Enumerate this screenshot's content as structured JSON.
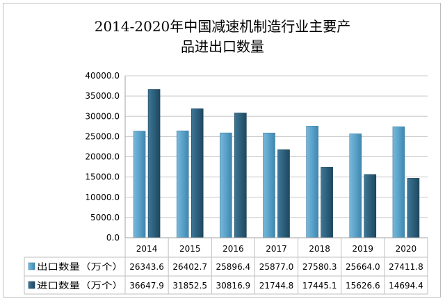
{
  "chart_data": {
    "type": "bar",
    "title": "2014-2020年中国减速机制造行业主要产品进出口数量",
    "title_lines": [
      "2014-2020年中国减速机制造行业主要产",
      "品进出口数量"
    ],
    "categories": [
      "2014",
      "2015",
      "2016",
      "2017",
      "2018",
      "2019",
      "2020"
    ],
    "series": [
      {
        "name": "出口数量（万个）",
        "values": [
          26343.6,
          26402.7,
          25896.4,
          25877.0,
          27580.3,
          25664.0,
          27411.8
        ],
        "value_labels": [
          "26343.6",
          "26402.7",
          "25896.4",
          "25877.0",
          "27580.3",
          "25664.0",
          "27411.8"
        ],
        "color": "#5da5cc"
      },
      {
        "name": "进口数量（万个）",
        "values": [
          36647.9,
          31852.5,
          30816.9,
          21744.8,
          17445.1,
          15626.6,
          14694.4
        ],
        "value_labels": [
          "36647.9",
          "31852.5",
          "30816.9",
          "21744.8",
          "17445.1",
          "15626.6",
          "14694.4"
        ],
        "color": "#2f617d"
      }
    ],
    "ylim": [
      0,
      40000
    ],
    "yticks": [
      0,
      5000,
      10000,
      15000,
      20000,
      25000,
      30000,
      35000,
      40000
    ],
    "ytick_labels": [
      "0.0",
      "5000.0",
      "10000.0",
      "15000.0",
      "20000.0",
      "25000.0",
      "30000.0",
      "35000.0",
      "40000.0"
    ],
    "grid": true,
    "legend": "data-table"
  }
}
